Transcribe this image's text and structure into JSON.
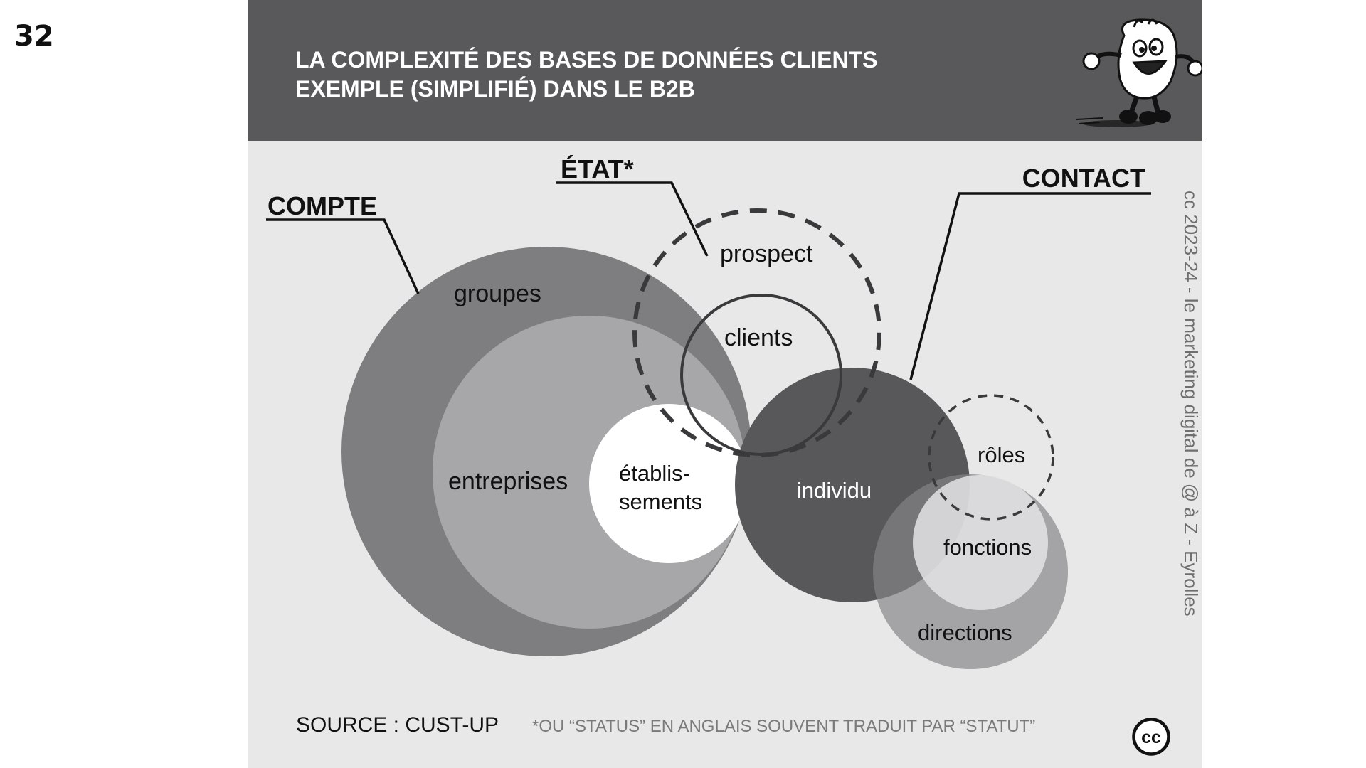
{
  "page_number": "32",
  "title": {
    "line1": "LA COMPLEXITÉ DES BASES DE DONNÉES CLIENTS",
    "line2": "EXEMPLE (SIMPLIFIÉ) DANS LE B2B"
  },
  "diagram": {
    "labels": {
      "compte": "COMPTE",
      "etat": "ÉTAT*",
      "contact": "CONTACT"
    },
    "nodes": {
      "groupes": "groupes",
      "entreprises": "entreprises",
      "etablissements_line1": "établis-",
      "etablissements_line2": "sements",
      "prospect": "prospect",
      "clients": "clients",
      "individu": "individu",
      "roles": "rôles",
      "fonctions": "fonctions",
      "directions": "directions"
    }
  },
  "credit": "cc 2023-24  - le marketing digital de @ à Z - Eyrolles",
  "footer": {
    "source": "SOURCE : CUST-UP",
    "note": "*OU “STATUS” EN ANGLAIS SOUVENT TRADUIT PAR “STATUT”",
    "cc_label": "cc"
  },
  "icons": {
    "mascot": "cartoon-mascot-icon",
    "cc": "creative-commons-icon"
  },
  "colors": {
    "header_bg": "#59595b",
    "slide_bg": "#e8e8e8",
    "groupes": "#7e7e80",
    "entreprises": "#a7a7a9",
    "individu": "#58585a",
    "directions": "#bdbdbf"
  }
}
